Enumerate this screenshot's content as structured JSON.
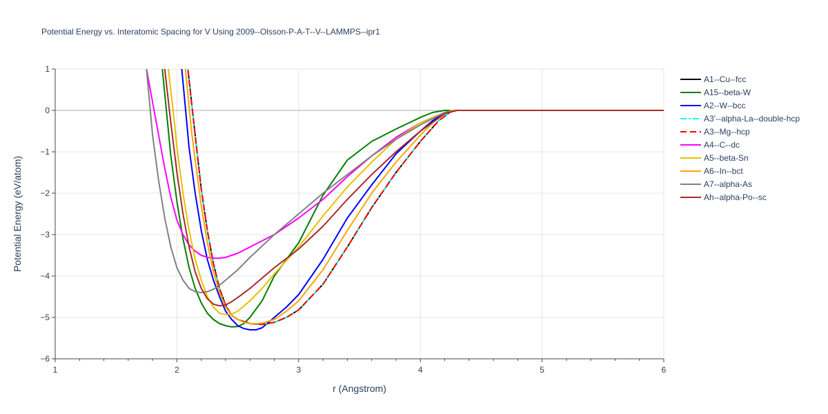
{
  "chart_data": {
    "type": "line",
    "title": "Potential Energy vs. Interatomic Spacing for V Using 2009--Olsson-P-A-T--V--LAMMPS--ipr1",
    "xlabel": "r (Angstrom)",
    "ylabel": "Potential Energy (eV/atom)",
    "xlim": [
      1,
      6
    ],
    "ylim": [
      -6,
      1
    ],
    "x_ticks": [
      "1",
      "2",
      "3",
      "4",
      "5",
      "6"
    ],
    "y_ticks": [
      "1",
      "0",
      "−1",
      "−2",
      "−3",
      "−4",
      "−5",
      "−6"
    ],
    "grid": true,
    "legend_position": "right",
    "series": [
      {
        "name": "A1--Cu--fcc",
        "color": "#000000",
        "dash": "solid",
        "x": [
          2.09,
          2.15,
          2.2,
          2.25,
          2.3,
          2.35,
          2.4,
          2.45,
          2.5,
          2.6,
          2.7,
          2.8,
          2.9,
          3.0,
          3.2,
          3.4,
          3.6,
          3.8,
          4.0,
          4.15,
          4.25,
          4.3,
          4.5,
          5.0,
          6.0
        ],
        "y": [
          1.0,
          -0.6,
          -1.9,
          -2.9,
          -3.7,
          -4.3,
          -4.7,
          -4.95,
          -5.05,
          -5.15,
          -5.17,
          -5.12,
          -5.0,
          -4.82,
          -4.2,
          -3.3,
          -2.35,
          -1.5,
          -0.75,
          -0.25,
          -0.03,
          0.0,
          0.0,
          0.0,
          0.0
        ]
      },
      {
        "name": "A15--beta-W",
        "color": "#008000",
        "dash": "solid",
        "x": [
          1.88,
          1.92,
          1.95,
          2.0,
          2.05,
          2.1,
          2.15,
          2.2,
          2.25,
          2.3,
          2.35,
          2.4,
          2.45,
          2.5,
          2.55,
          2.6,
          2.7,
          2.8,
          3.0,
          3.2,
          3.4,
          3.6,
          3.8,
          4.0,
          4.1,
          4.2,
          4.3,
          5.0,
          6.0
        ],
        "y": [
          1.0,
          -0.2,
          -1.1,
          -2.2,
          -3.1,
          -3.8,
          -4.3,
          -4.65,
          -4.9,
          -5.05,
          -5.15,
          -5.2,
          -5.23,
          -5.22,
          -5.15,
          -5.0,
          -4.6,
          -4.0,
          -3.2,
          -2.05,
          -1.2,
          -0.75,
          -0.45,
          -0.17,
          -0.05,
          0.0,
          0.0,
          0.0,
          0.0
        ]
      },
      {
        "name": "A2--W--bcc",
        "color": "#0000ff",
        "dash": "solid",
        "x": [
          2.04,
          2.1,
          2.15,
          2.2,
          2.25,
          2.3,
          2.35,
          2.4,
          2.45,
          2.5,
          2.55,
          2.6,
          2.65,
          2.7,
          2.8,
          2.9,
          3.0,
          3.2,
          3.4,
          3.6,
          3.8,
          4.0,
          4.1,
          4.2,
          4.25,
          4.3,
          5.0,
          6.0
        ],
        "y": [
          1.0,
          -0.9,
          -2.0,
          -2.9,
          -3.6,
          -4.1,
          -4.5,
          -4.85,
          -5.05,
          -5.2,
          -5.27,
          -5.3,
          -5.3,
          -5.25,
          -5.0,
          -4.75,
          -4.45,
          -3.6,
          -2.6,
          -1.8,
          -1.05,
          -0.5,
          -0.25,
          -0.06,
          0.0,
          0.0,
          0.0,
          0.0
        ]
      },
      {
        "name": "A3'--alpha-La--double-hcp",
        "color": "#00ffff",
        "dash": "dashdot",
        "x": [
          2.09,
          2.15,
          2.2,
          2.25,
          2.3,
          2.35,
          2.4,
          2.45,
          2.5,
          2.6,
          2.7,
          2.8,
          2.9,
          3.0,
          3.2,
          3.4,
          3.6,
          3.8,
          4.0,
          4.15,
          4.25,
          4.3,
          4.5,
          5.0,
          6.0
        ],
        "y": [
          1.0,
          -0.6,
          -1.9,
          -2.9,
          -3.7,
          -4.3,
          -4.7,
          -4.95,
          -5.05,
          -5.15,
          -5.17,
          -5.12,
          -5.0,
          -4.82,
          -4.2,
          -3.3,
          -2.35,
          -1.5,
          -0.75,
          -0.25,
          -0.03,
          0.0,
          0.0,
          0.0,
          0.0
        ]
      },
      {
        "name": "A3--Mg--hcp",
        "color": "#ff0000",
        "dash": "dash",
        "x": [
          2.09,
          2.15,
          2.2,
          2.25,
          2.3,
          2.35,
          2.4,
          2.45,
          2.5,
          2.6,
          2.7,
          2.8,
          2.9,
          3.0,
          3.2,
          3.4,
          3.6,
          3.8,
          4.0,
          4.15,
          4.25,
          4.3,
          4.5,
          5.0,
          6.0
        ],
        "y": [
          1.0,
          -0.6,
          -1.9,
          -2.9,
          -3.7,
          -4.3,
          -4.7,
          -4.95,
          -5.05,
          -5.15,
          -5.17,
          -5.12,
          -5.0,
          -4.82,
          -4.2,
          -3.3,
          -2.35,
          -1.5,
          -0.75,
          -0.25,
          -0.03,
          0.0,
          0.0,
          0.0,
          0.0
        ]
      },
      {
        "name": "A4--C--dc",
        "color": "#ff00ff",
        "dash": "solid",
        "x": [
          1.75,
          1.8,
          1.85,
          1.9,
          1.95,
          2.0,
          2.05,
          2.1,
          2.15,
          2.2,
          2.25,
          2.3,
          2.35,
          2.4,
          2.5,
          2.6,
          2.8,
          3.0,
          3.2,
          3.4,
          3.6,
          3.8,
          4.0,
          4.2,
          4.3,
          5.0,
          6.0
        ],
        "y": [
          1.0,
          0.2,
          -0.6,
          -1.4,
          -2.1,
          -2.65,
          -3.0,
          -3.25,
          -3.4,
          -3.5,
          -3.55,
          -3.57,
          -3.57,
          -3.55,
          -3.45,
          -3.3,
          -3.0,
          -2.6,
          -2.15,
          -1.6,
          -1.1,
          -0.65,
          -0.3,
          -0.05,
          0.0,
          0.0,
          0.0
        ]
      },
      {
        "name": "A5--beta-Sn",
        "color": "#e6c000",
        "dash": "solid",
        "x": [
          1.93,
          1.98,
          2.0,
          2.05,
          2.1,
          2.15,
          2.2,
          2.25,
          2.3,
          2.35,
          2.4,
          2.45,
          2.5,
          2.6,
          2.7,
          2.8,
          3.0,
          3.2,
          3.4,
          3.6,
          3.8,
          4.0,
          4.2,
          4.3,
          5.0,
          6.0
        ],
        "y": [
          1.0,
          -0.3,
          -0.9,
          -2.0,
          -2.9,
          -3.6,
          -4.1,
          -4.5,
          -4.75,
          -4.9,
          -4.93,
          -4.92,
          -4.85,
          -4.6,
          -4.3,
          -3.95,
          -3.3,
          -2.55,
          -1.85,
          -1.25,
          -0.7,
          -0.3,
          -0.05,
          0.0,
          0.0,
          0.0
        ]
      },
      {
        "name": "A6--In--bct",
        "color": "#ffa500",
        "dash": "solid",
        "x": [
          2.07,
          2.12,
          2.15,
          2.2,
          2.25,
          2.3,
          2.35,
          2.4,
          2.45,
          2.5,
          2.55,
          2.6,
          2.65,
          2.7,
          2.8,
          2.9,
          3.0,
          3.2,
          3.4,
          3.6,
          3.8,
          4.0,
          4.1,
          4.2,
          4.25,
          4.3,
          5.0,
          6.0
        ],
        "y": [
          1.0,
          -0.5,
          -1.2,
          -2.3,
          -3.2,
          -3.9,
          -4.4,
          -4.75,
          -4.95,
          -5.05,
          -5.12,
          -5.15,
          -5.15,
          -5.14,
          -5.05,
          -4.85,
          -4.6,
          -3.85,
          -2.9,
          -2.0,
          -1.25,
          -0.6,
          -0.3,
          -0.08,
          0.0,
          0.0,
          0.0,
          0.0
        ]
      },
      {
        "name": "A7--alpha-As",
        "color": "#808080",
        "dash": "solid",
        "x": [
          1.75,
          1.8,
          1.85,
          1.9,
          1.95,
          2.0,
          2.05,
          2.1,
          2.15,
          2.2,
          2.25,
          2.3,
          2.35,
          2.4,
          2.5,
          2.6,
          2.8,
          3.0,
          3.2,
          3.4,
          3.6,
          3.8,
          4.0,
          4.2,
          4.3,
          5.0,
          6.0
        ],
        "y": [
          1.0,
          -0.6,
          -1.7,
          -2.6,
          -3.3,
          -3.8,
          -4.1,
          -4.3,
          -4.38,
          -4.4,
          -4.38,
          -4.32,
          -4.22,
          -4.1,
          -3.85,
          -3.55,
          -3.0,
          -2.5,
          -2.0,
          -1.55,
          -1.1,
          -0.7,
          -0.35,
          -0.05,
          0.0,
          0.0,
          0.0
        ]
      },
      {
        "name": "Ah--alpha-Po--sc",
        "color": "#a52a2a",
        "dash": "solid",
        "x": [
          1.9,
          1.95,
          2.0,
          2.05,
          2.1,
          2.15,
          2.2,
          2.25,
          2.3,
          2.35,
          2.4,
          2.45,
          2.5,
          2.6,
          2.7,
          2.8,
          3.0,
          3.2,
          3.4,
          3.6,
          3.8,
          4.0,
          4.2,
          4.3,
          5.0,
          6.0
        ],
        "y": [
          1.0,
          -0.3,
          -1.5,
          -2.5,
          -3.3,
          -3.9,
          -4.3,
          -4.55,
          -4.68,
          -4.72,
          -4.7,
          -4.62,
          -4.52,
          -4.3,
          -4.05,
          -3.8,
          -3.35,
          -2.8,
          -2.15,
          -1.55,
          -1.0,
          -0.5,
          -0.08,
          0.0,
          0.0,
          0.0
        ]
      }
    ]
  }
}
